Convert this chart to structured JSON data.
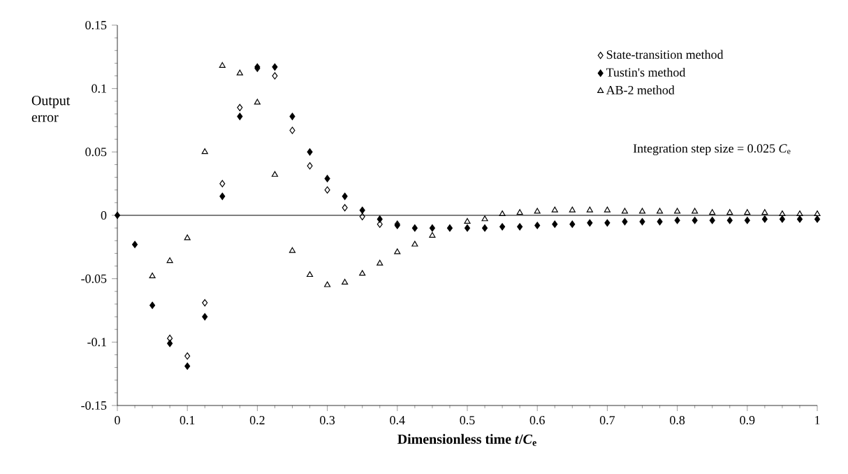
{
  "chart_data": {
    "type": "scatter",
    "xlabel": "Dimensionless time *t*/*C*$_{e}$",
    "ylabel": "Output error",
    "x": [
      0,
      0.025,
      0.05,
      0.075,
      0.1,
      0.125,
      0.15,
      0.175,
      0.2,
      0.225,
      0.25,
      0.275,
      0.3,
      0.325,
      0.35,
      0.375,
      0.4,
      0.425,
      0.45,
      0.475,
      0.5,
      0.525,
      0.55,
      0.575,
      0.6,
      0.625,
      0.65,
      0.675,
      0.7,
      0.725,
      0.75,
      0.775,
      0.8,
      0.825,
      0.85,
      0.875,
      0.9,
      0.925,
      0.95,
      0.975,
      1
    ],
    "series": [
      {
        "name": "State-transition method",
        "color": "#000000",
        "marker": "diamond",
        "values": [
          null,
          null,
          null,
          -0.097,
          -0.111,
          -0.069,
          0.025,
          0.085,
          0.116,
          0.11,
          0.067,
          0.039,
          0.02,
          0.006,
          -0.001,
          -0.007,
          -0.007,
          null,
          null,
          null,
          null,
          null,
          null,
          null,
          null,
          null,
          null,
          null,
          null,
          null,
          null,
          null,
          null,
          null,
          null,
          null,
          null,
          null,
          null,
          null,
          null
        ]
      },
      {
        "name": "Tustin's method",
        "color": "#000000",
        "marker": "diamond-filled",
        "values": [
          0,
          -0.023,
          -0.071,
          -0.101,
          -0.119,
          -0.08,
          0.015,
          0.078,
          0.117,
          0.117,
          0.078,
          0.05,
          0.029,
          0.015,
          0.004,
          -0.003,
          -0.008,
          -0.01,
          -0.01,
          -0.01,
          -0.01,
          -0.01,
          -0.009,
          -0.009,
          -0.008,
          -0.007,
          -0.007,
          -0.006,
          -0.006,
          -0.005,
          -0.005,
          -0.005,
          -0.004,
          -0.004,
          -0.004,
          -0.004,
          -0.004,
          -0.003,
          -0.003,
          -0.003,
          -0.003
        ]
      },
      {
        "name": "AB-2 method",
        "color": "#000000",
        "marker": "triangle",
        "values": [
          null,
          null,
          -0.048,
          -0.036,
          -0.018,
          0.05,
          0.118,
          0.112,
          0.089,
          0.032,
          -0.028,
          -0.047,
          -0.055,
          -0.053,
          -0.046,
          -0.038,
          -0.029,
          -0.023,
          -0.016,
          null,
          -0.005,
          -0.003,
          0.001,
          0.002,
          0.003,
          0.004,
          0.004,
          0.004,
          0.004,
          0.003,
          0.003,
          0.003,
          0.003,
          0.003,
          0.002,
          0.002,
          0.002,
          0.002,
          0.001,
          0.001,
          0.001
        ]
      }
    ],
    "annotations": [
      "Integration step size = 0.025 *C*$_{e}$"
    ],
    "ref_lines": [
      {
        "axis": "y",
        "value": 0,
        "color": "#000000"
      }
    ],
    "xlim": [
      0,
      1
    ],
    "xticks": [
      0,
      0.1,
      0.2,
      0.3,
      0.4,
      0.5,
      0.6,
      0.7,
      0.8,
      0.9,
      1
    ],
    "ylim": [
      -0.15,
      0.15
    ],
    "yticks": [
      -0.15,
      -0.1,
      -0.05,
      0,
      0.05,
      0.1,
      0.15
    ],
    "grid": false,
    "legend": "top right"
  }
}
